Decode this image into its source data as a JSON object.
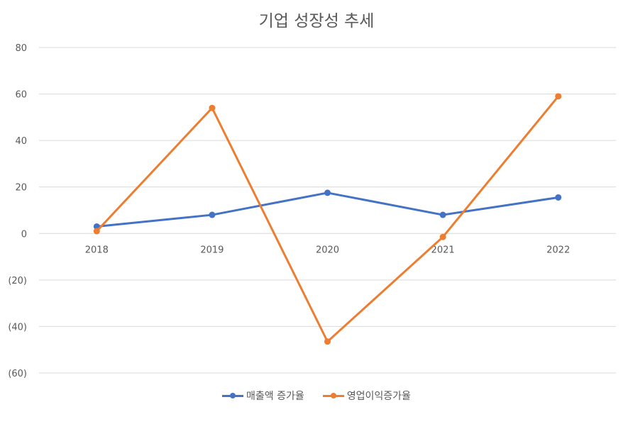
{
  "chart_data": {
    "type": "line",
    "title": "기업 성장성 추세",
    "categories": [
      "2018",
      "2019",
      "2020",
      "2021",
      "2022"
    ],
    "ylim": [
      -60,
      80
    ],
    "yticks": [
      80,
      60,
      40,
      20,
      0,
      -20,
      -40,
      -60
    ],
    "ytick_labels": [
      "80",
      "60",
      "40",
      "20",
      "0",
      "(20)",
      "(40)",
      "(60)"
    ],
    "grid": true,
    "legend_position": "bottom",
    "series": [
      {
        "name": "매출액 증가율",
        "values": [
          3,
          8,
          17.5,
          8,
          15.5
        ],
        "color": "#4472c4"
      },
      {
        "name": "영업이익증가율",
        "values": [
          1,
          54,
          -46.5,
          -1.5,
          59
        ],
        "color": "#ed7d31"
      }
    ]
  }
}
